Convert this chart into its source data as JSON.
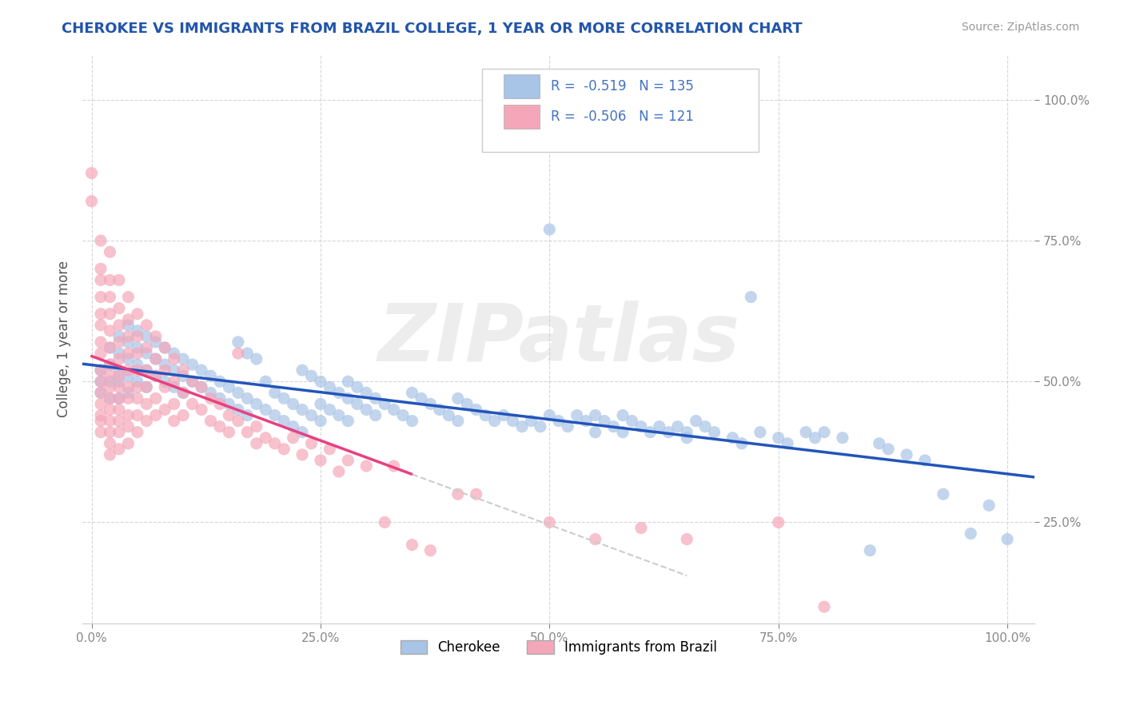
{
  "title": "CHEROKEE VS IMMIGRANTS FROM BRAZIL COLLEGE, 1 YEAR OR MORE CORRELATION CHART",
  "source_text": "Source: ZipAtlas.com",
  "ylabel": "College, 1 year or more",
  "x_tick_labels": [
    "0.0%",
    "25.0%",
    "50.0%",
    "75.0%",
    "100.0%"
  ],
  "x_tick_vals": [
    0.0,
    0.25,
    0.5,
    0.75,
    1.0
  ],
  "y_tick_labels": [
    "25.0%",
    "50.0%",
    "75.0%",
    "100.0%"
  ],
  "y_tick_vals": [
    0.25,
    0.5,
    0.75,
    1.0
  ],
  "xlim": [
    -0.01,
    1.03
  ],
  "ylim": [
    0.07,
    1.08
  ],
  "cherokee_color": "#a8c4e6",
  "brazil_color": "#f4a7b9",
  "cherokee_line_color": "#2255bb",
  "brazil_line_color": "#e84080",
  "cherokee_R": -0.519,
  "cherokee_N": 135,
  "brazil_R": -0.506,
  "brazil_N": 121,
  "watermark": "ZIPatlas",
  "background_color": "#ffffff",
  "grid_color": "#cccccc",
  "cherokee_scatter": [
    [
      0.01,
      0.5
    ],
    [
      0.01,
      0.48
    ],
    [
      0.01,
      0.52
    ],
    [
      0.02,
      0.56
    ],
    [
      0.02,
      0.53
    ],
    [
      0.02,
      0.5
    ],
    [
      0.02,
      0.47
    ],
    [
      0.03,
      0.58
    ],
    [
      0.03,
      0.55
    ],
    [
      0.03,
      0.52
    ],
    [
      0.03,
      0.5
    ],
    [
      0.03,
      0.47
    ],
    [
      0.04,
      0.6
    ],
    [
      0.04,
      0.57
    ],
    [
      0.04,
      0.54
    ],
    [
      0.04,
      0.51
    ],
    [
      0.04,
      0.48
    ],
    [
      0.05,
      0.59
    ],
    [
      0.05,
      0.56
    ],
    [
      0.05,
      0.53
    ],
    [
      0.05,
      0.5
    ],
    [
      0.06,
      0.58
    ],
    [
      0.06,
      0.55
    ],
    [
      0.06,
      0.52
    ],
    [
      0.06,
      0.49
    ],
    [
      0.07,
      0.57
    ],
    [
      0.07,
      0.54
    ],
    [
      0.07,
      0.51
    ],
    [
      0.08,
      0.56
    ],
    [
      0.08,
      0.53
    ],
    [
      0.08,
      0.5
    ],
    [
      0.09,
      0.55
    ],
    [
      0.09,
      0.52
    ],
    [
      0.09,
      0.49
    ],
    [
      0.1,
      0.54
    ],
    [
      0.1,
      0.51
    ],
    [
      0.1,
      0.48
    ],
    [
      0.11,
      0.53
    ],
    [
      0.11,
      0.5
    ],
    [
      0.12,
      0.52
    ],
    [
      0.12,
      0.49
    ],
    [
      0.13,
      0.51
    ],
    [
      0.13,
      0.48
    ],
    [
      0.14,
      0.5
    ],
    [
      0.14,
      0.47
    ],
    [
      0.15,
      0.49
    ],
    [
      0.15,
      0.46
    ],
    [
      0.16,
      0.57
    ],
    [
      0.16,
      0.48
    ],
    [
      0.16,
      0.45
    ],
    [
      0.17,
      0.55
    ],
    [
      0.17,
      0.47
    ],
    [
      0.17,
      0.44
    ],
    [
      0.18,
      0.54
    ],
    [
      0.18,
      0.46
    ],
    [
      0.19,
      0.5
    ],
    [
      0.19,
      0.45
    ],
    [
      0.2,
      0.48
    ],
    [
      0.2,
      0.44
    ],
    [
      0.21,
      0.47
    ],
    [
      0.21,
      0.43
    ],
    [
      0.22,
      0.46
    ],
    [
      0.22,
      0.42
    ],
    [
      0.23,
      0.52
    ],
    [
      0.23,
      0.45
    ],
    [
      0.23,
      0.41
    ],
    [
      0.24,
      0.51
    ],
    [
      0.24,
      0.44
    ],
    [
      0.25,
      0.5
    ],
    [
      0.25,
      0.46
    ],
    [
      0.25,
      0.43
    ],
    [
      0.26,
      0.49
    ],
    [
      0.26,
      0.45
    ],
    [
      0.27,
      0.48
    ],
    [
      0.27,
      0.44
    ],
    [
      0.28,
      0.5
    ],
    [
      0.28,
      0.47
    ],
    [
      0.28,
      0.43
    ],
    [
      0.29,
      0.49
    ],
    [
      0.29,
      0.46
    ],
    [
      0.3,
      0.48
    ],
    [
      0.3,
      0.45
    ],
    [
      0.31,
      0.47
    ],
    [
      0.31,
      0.44
    ],
    [
      0.32,
      0.46
    ],
    [
      0.33,
      0.45
    ],
    [
      0.34,
      0.44
    ],
    [
      0.35,
      0.48
    ],
    [
      0.35,
      0.43
    ],
    [
      0.36,
      0.47
    ],
    [
      0.37,
      0.46
    ],
    [
      0.38,
      0.45
    ],
    [
      0.39,
      0.44
    ],
    [
      0.4,
      0.47
    ],
    [
      0.4,
      0.43
    ],
    [
      0.41,
      0.46
    ],
    [
      0.42,
      0.45
    ],
    [
      0.43,
      0.44
    ],
    [
      0.44,
      0.43
    ],
    [
      0.45,
      0.44
    ],
    [
      0.46,
      0.43
    ],
    [
      0.47,
      0.42
    ],
    [
      0.48,
      0.43
    ],
    [
      0.49,
      0.42
    ],
    [
      0.5,
      0.77
    ],
    [
      0.5,
      0.44
    ],
    [
      0.51,
      0.43
    ],
    [
      0.52,
      0.42
    ],
    [
      0.53,
      0.44
    ],
    [
      0.54,
      0.43
    ],
    [
      0.55,
      0.44
    ],
    [
      0.55,
      0.41
    ],
    [
      0.56,
      0.43
    ],
    [
      0.57,
      0.42
    ],
    [
      0.58,
      0.44
    ],
    [
      0.58,
      0.41
    ],
    [
      0.59,
      0.43
    ],
    [
      0.6,
      0.42
    ],
    [
      0.61,
      0.41
    ],
    [
      0.62,
      0.42
    ],
    [
      0.63,
      0.41
    ],
    [
      0.64,
      0.42
    ],
    [
      0.65,
      0.41
    ],
    [
      0.65,
      0.4
    ],
    [
      0.66,
      0.43
    ],
    [
      0.67,
      0.42
    ],
    [
      0.68,
      0.41
    ],
    [
      0.7,
      0.4
    ],
    [
      0.71,
      0.39
    ],
    [
      0.72,
      0.65
    ],
    [
      0.73,
      0.41
    ],
    [
      0.75,
      0.4
    ],
    [
      0.76,
      0.39
    ],
    [
      0.78,
      0.41
    ],
    [
      0.79,
      0.4
    ],
    [
      0.8,
      0.41
    ],
    [
      0.82,
      0.4
    ],
    [
      0.85,
      0.2
    ],
    [
      0.86,
      0.39
    ],
    [
      0.87,
      0.38
    ],
    [
      0.89,
      0.37
    ],
    [
      0.91,
      0.36
    ],
    [
      0.93,
      0.3
    ],
    [
      0.96,
      0.23
    ],
    [
      0.98,
      0.28
    ],
    [
      1.0,
      0.22
    ]
  ],
  "brazil_scatter": [
    [
      0.0,
      0.87
    ],
    [
      0.0,
      0.82
    ],
    [
      0.01,
      0.75
    ],
    [
      0.01,
      0.7
    ],
    [
      0.01,
      0.68
    ],
    [
      0.01,
      0.65
    ],
    [
      0.01,
      0.62
    ],
    [
      0.01,
      0.6
    ],
    [
      0.01,
      0.57
    ],
    [
      0.01,
      0.55
    ],
    [
      0.01,
      0.52
    ],
    [
      0.01,
      0.5
    ],
    [
      0.01,
      0.48
    ],
    [
      0.01,
      0.46
    ],
    [
      0.01,
      0.44
    ],
    [
      0.01,
      0.43
    ],
    [
      0.01,
      0.41
    ],
    [
      0.02,
      0.73
    ],
    [
      0.02,
      0.68
    ],
    [
      0.02,
      0.65
    ],
    [
      0.02,
      0.62
    ],
    [
      0.02,
      0.59
    ],
    [
      0.02,
      0.56
    ],
    [
      0.02,
      0.53
    ],
    [
      0.02,
      0.51
    ],
    [
      0.02,
      0.49
    ],
    [
      0.02,
      0.47
    ],
    [
      0.02,
      0.45
    ],
    [
      0.02,
      0.43
    ],
    [
      0.02,
      0.41
    ],
    [
      0.02,
      0.39
    ],
    [
      0.02,
      0.37
    ],
    [
      0.03,
      0.68
    ],
    [
      0.03,
      0.63
    ],
    [
      0.03,
      0.6
    ],
    [
      0.03,
      0.57
    ],
    [
      0.03,
      0.54
    ],
    [
      0.03,
      0.51
    ],
    [
      0.03,
      0.49
    ],
    [
      0.03,
      0.47
    ],
    [
      0.03,
      0.45
    ],
    [
      0.03,
      0.43
    ],
    [
      0.03,
      0.41
    ],
    [
      0.03,
      0.38
    ],
    [
      0.04,
      0.65
    ],
    [
      0.04,
      0.61
    ],
    [
      0.04,
      0.58
    ],
    [
      0.04,
      0.55
    ],
    [
      0.04,
      0.52
    ],
    [
      0.04,
      0.49
    ],
    [
      0.04,
      0.47
    ],
    [
      0.04,
      0.44
    ],
    [
      0.04,
      0.42
    ],
    [
      0.04,
      0.39
    ],
    [
      0.05,
      0.62
    ],
    [
      0.05,
      0.58
    ],
    [
      0.05,
      0.55
    ],
    [
      0.05,
      0.52
    ],
    [
      0.05,
      0.49
    ],
    [
      0.05,
      0.47
    ],
    [
      0.05,
      0.44
    ],
    [
      0.05,
      0.41
    ],
    [
      0.06,
      0.6
    ],
    [
      0.06,
      0.56
    ],
    [
      0.06,
      0.52
    ],
    [
      0.06,
      0.49
    ],
    [
      0.06,
      0.46
    ],
    [
      0.06,
      0.43
    ],
    [
      0.07,
      0.58
    ],
    [
      0.07,
      0.54
    ],
    [
      0.07,
      0.51
    ],
    [
      0.07,
      0.47
    ],
    [
      0.07,
      0.44
    ],
    [
      0.08,
      0.56
    ],
    [
      0.08,
      0.52
    ],
    [
      0.08,
      0.49
    ],
    [
      0.08,
      0.45
    ],
    [
      0.09,
      0.54
    ],
    [
      0.09,
      0.5
    ],
    [
      0.09,
      0.46
    ],
    [
      0.09,
      0.43
    ],
    [
      0.1,
      0.52
    ],
    [
      0.1,
      0.48
    ],
    [
      0.1,
      0.44
    ],
    [
      0.11,
      0.5
    ],
    [
      0.11,
      0.46
    ],
    [
      0.12,
      0.49
    ],
    [
      0.12,
      0.45
    ],
    [
      0.13,
      0.47
    ],
    [
      0.13,
      0.43
    ],
    [
      0.14,
      0.46
    ],
    [
      0.14,
      0.42
    ],
    [
      0.15,
      0.44
    ],
    [
      0.15,
      0.41
    ],
    [
      0.16,
      0.55
    ],
    [
      0.16,
      0.43
    ],
    [
      0.17,
      0.41
    ],
    [
      0.18,
      0.42
    ],
    [
      0.18,
      0.39
    ],
    [
      0.19,
      0.4
    ],
    [
      0.2,
      0.39
    ],
    [
      0.21,
      0.38
    ],
    [
      0.22,
      0.4
    ],
    [
      0.23,
      0.37
    ],
    [
      0.24,
      0.39
    ],
    [
      0.25,
      0.36
    ],
    [
      0.26,
      0.38
    ],
    [
      0.27,
      0.34
    ],
    [
      0.28,
      0.36
    ],
    [
      0.3,
      0.35
    ],
    [
      0.32,
      0.25
    ],
    [
      0.33,
      0.35
    ],
    [
      0.35,
      0.21
    ],
    [
      0.37,
      0.2
    ],
    [
      0.4,
      0.3
    ],
    [
      0.42,
      0.3
    ],
    [
      0.5,
      0.25
    ],
    [
      0.55,
      0.22
    ],
    [
      0.6,
      0.24
    ],
    [
      0.65,
      0.22
    ],
    [
      0.75,
      0.25
    ],
    [
      0.8,
      0.1
    ]
  ]
}
